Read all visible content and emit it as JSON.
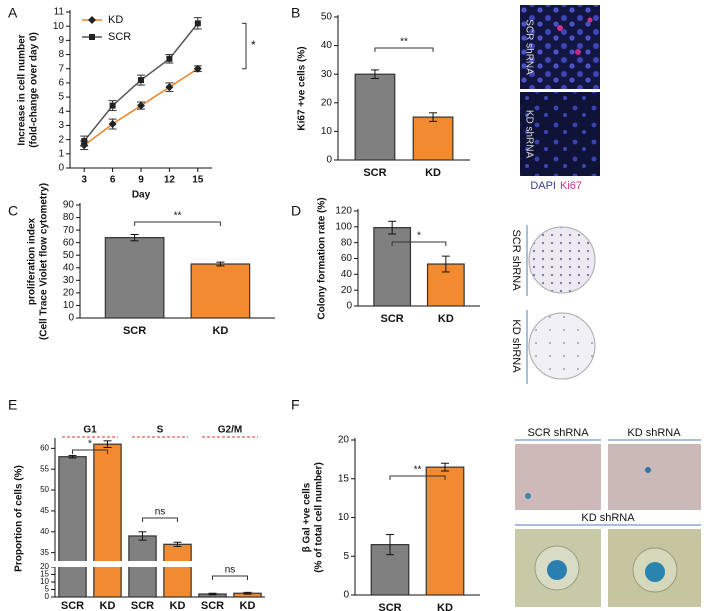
{
  "chart_data": [
    {
      "panel": "A",
      "type": "line",
      "ylabel": [
        "Increase in cell number",
        "(fold-change over day 0)"
      ],
      "xlabel": "Day",
      "x": [
        3,
        6,
        9,
        12,
        15
      ],
      "xlim": [
        1.5,
        16.5
      ],
      "xticks": [
        3,
        6,
        9,
        12,
        15
      ],
      "ylim": [
        0,
        11
      ],
      "yticks": [
        0,
        1,
        2,
        3,
        4,
        5,
        6,
        7,
        8,
        9,
        10,
        11
      ],
      "legend": "upper left",
      "series": [
        {
          "name": "KD",
          "color": "#f07f28",
          "marker": "diamond",
          "values": [
            1.6,
            3.1,
            4.4,
            5.7,
            7.0
          ],
          "errors": [
            0.3,
            0.35,
            0.25,
            0.3,
            0.2
          ]
        },
        {
          "name": "SCR",
          "color": "#555555",
          "marker": "square",
          "values": [
            1.9,
            4.4,
            6.2,
            7.7,
            10.2
          ],
          "errors": [
            0.35,
            0.35,
            0.35,
            0.3,
            0.4
          ]
        }
      ],
      "annotations": [
        "*"
      ]
    },
    {
      "panel": "B",
      "type": "bar",
      "ylabel": [
        "Ki67 +ve cells (%)"
      ],
      "categories": [
        "SCR",
        "KD"
      ],
      "values": [
        30,
        15
      ],
      "errors": [
        1.5,
        1.5
      ],
      "colors": [
        "#808080",
        "#f28a30"
      ],
      "ylim": [
        0,
        50
      ],
      "yticks": [
        0,
        10,
        20,
        30,
        40,
        50
      ],
      "annotations": [
        "**"
      ],
      "images": [
        "SCR shRNA",
        "KD shRNA"
      ],
      "stain": [
        "DAPI",
        "Ki67"
      ]
    },
    {
      "panel": "C",
      "type": "bar",
      "ylabel": [
        "proliferation index",
        "(Cell Trace Violet flow cytometry)"
      ],
      "categories": [
        "SCR",
        "KD"
      ],
      "values": [
        64,
        43
      ],
      "errors": [
        2.5,
        1.5
      ],
      "colors": [
        "#808080",
        "#f28a30"
      ],
      "ylim": [
        0,
        90
      ],
      "yticks": [
        0,
        10,
        20,
        30,
        40,
        50,
        60,
        70,
        80,
        90
      ],
      "annotations": [
        "**"
      ]
    },
    {
      "panel": "D",
      "type": "bar",
      "ylabel": [
        "Colony formation rate (%)"
      ],
      "categories": [
        "SCR",
        "KD"
      ],
      "values": [
        99,
        53
      ],
      "errors": [
        8,
        10
      ],
      "colors": [
        "#808080",
        "#f28a30"
      ],
      "ylim": [
        0,
        120
      ],
      "yticks": [
        0,
        20,
        40,
        60,
        80,
        100,
        120
      ],
      "annotations": [
        "*"
      ],
      "images": [
        "SCR shRNA",
        "KD shRNA"
      ]
    },
    {
      "panel": "E",
      "type": "bar",
      "ylabel": [
        "Proportion of cells (%)"
      ],
      "groups": [
        "G1",
        "S",
        "G2/M"
      ],
      "categories": [
        "SCR",
        "KD",
        "SCR",
        "KD",
        "SCR",
        "KD"
      ],
      "values": [
        58,
        61,
        39,
        37,
        2,
        2.5
      ],
      "errors": [
        0.3,
        0.8,
        1,
        0.5,
        0.5,
        0.6
      ],
      "colors": [
        "#808080",
        "#f28a30",
        "#808080",
        "#f28a30",
        "#808080",
        "#f28a30"
      ],
      "ylim": [
        0,
        62
      ],
      "ybreak": [
        20,
        33
      ],
      "yticks": [
        0,
        5,
        10,
        15,
        20,
        35,
        40,
        45,
        50,
        55,
        60
      ],
      "annotations": [
        "*",
        "ns",
        "ns"
      ]
    },
    {
      "panel": "F",
      "type": "bar",
      "ylabel": [
        "β Gal  +ve cells",
        "(% of total cell number)"
      ],
      "categories": [
        "SCR",
        "KD"
      ],
      "values": [
        6.5,
        16.5
      ],
      "errors": [
        1.3,
        0.5
      ],
      "colors": [
        "#808080",
        "#f28a30"
      ],
      "ylim": [
        0,
        20
      ],
      "yticks": [
        0,
        5,
        10,
        15,
        20
      ],
      "annotations": [
        "**"
      ],
      "images": [
        "SCR shRNA",
        "KD shRNA",
        "KD shRNA"
      ]
    }
  ]
}
